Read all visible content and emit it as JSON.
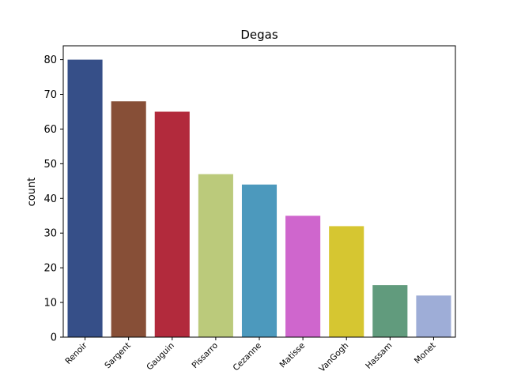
{
  "chart_data": {
    "type": "bar",
    "title": "Degas",
    "xlabel": "",
    "ylabel": "count",
    "categories": [
      "Renoir",
      "Sargent",
      "Gauguin",
      "Pissarro",
      "Cezanne",
      "Matisse",
      "VanGogh",
      "Hassam",
      "Monet"
    ],
    "values": [
      80,
      68,
      65,
      47,
      44,
      35,
      32,
      15,
      12
    ],
    "colors": [
      "#364f88",
      "#874f37",
      "#b22a3c",
      "#bbca7b",
      "#4c99bd",
      "#cf66cd",
      "#d6c631",
      "#619b7d",
      "#9eadd7"
    ],
    "ylim": [
      0,
      84
    ],
    "yticks": [
      0,
      10,
      20,
      30,
      40,
      50,
      60,
      70,
      80
    ],
    "grid": false,
    "legend": "none"
  }
}
